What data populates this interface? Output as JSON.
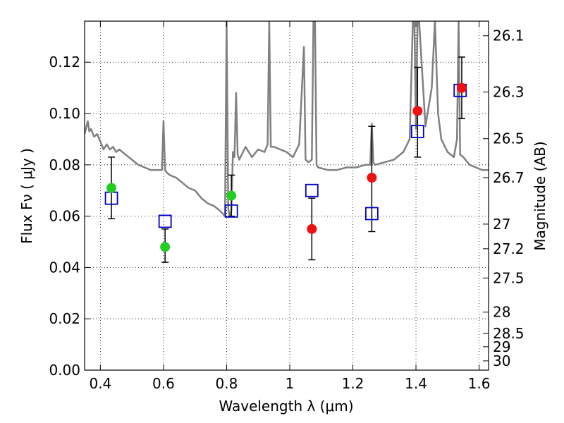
{
  "chart_data": {
    "type": "scatter",
    "title": "",
    "xlabel": "Wavelength  λ (μm)",
    "ylabel": "Flux  Fν  ( μJy )",
    "ylabel_right": "Magnitude (AB)",
    "xlim": [
      0.35,
      1.63
    ],
    "ylim": [
      0.0,
      0.136
    ],
    "grid": true,
    "x_ticks": [
      0.4,
      0.6,
      0.8,
      1.0,
      1.2,
      1.4,
      1.6
    ],
    "x_tick_labels": [
      "0.4",
      "0.6",
      "0.8",
      "1",
      "1.2",
      "1.4",
      "1.6"
    ],
    "y_ticks": [
      0.0,
      0.02,
      0.04,
      0.06,
      0.08,
      0.1,
      0.12
    ],
    "y_tick_labels": [
      "0.00",
      "0.02",
      "0.04",
      "0.06",
      "0.08",
      "0.10",
      "0.12"
    ],
    "right_ticks": [
      {
        "label": "26.1",
        "flux": 0.1303
      },
      {
        "label": "26.3",
        "flux": 0.1084
      },
      {
        "label": "26.5",
        "flux": 0.0902
      },
      {
        "label": "26.7",
        "flux": 0.075
      },
      {
        "label": "27",
        "flux": 0.0569
      },
      {
        "label": "27.2",
        "flux": 0.0473
      },
      {
        "label": "27.5",
        "flux": 0.0359
      },
      {
        "label": "28",
        "flux": 0.0226
      },
      {
        "label": "28.5",
        "flux": 0.0143
      },
      {
        "label": "29",
        "flux": 0.0091
      },
      {
        "label": "30",
        "flux": 0.0036
      }
    ],
    "series": [
      {
        "name": "",
        "kind": "line",
        "color": "#808080",
        "x": [
          0.35,
          0.36,
          0.365,
          0.37,
          0.38,
          0.39,
          0.4,
          0.41,
          0.42,
          0.43,
          0.44,
          0.45,
          0.46,
          0.48,
          0.5,
          0.52,
          0.54,
          0.56,
          0.58,
          0.595,
          0.6,
          0.605,
          0.61,
          0.62,
          0.64,
          0.66,
          0.68,
          0.7,
          0.72,
          0.74,
          0.76,
          0.78,
          0.795,
          0.8,
          0.805,
          0.81,
          0.815,
          0.82,
          0.825,
          0.83,
          0.835,
          0.84,
          0.86,
          0.88,
          0.9,
          0.92,
          0.93,
          0.935,
          0.94,
          0.95,
          0.97,
          0.99,
          1.01,
          1.03,
          1.045,
          1.05,
          1.06,
          1.07,
          1.075,
          1.08,
          1.085,
          1.09,
          1.12,
          1.15,
          1.18,
          1.21,
          1.24,
          1.255,
          1.26,
          1.265,
          1.27,
          1.3,
          1.33,
          1.36,
          1.38,
          1.39,
          1.395,
          1.4,
          1.405,
          1.41,
          1.43,
          1.45,
          1.46,
          1.47,
          1.48,
          1.5,
          1.52,
          1.53,
          1.535,
          1.54,
          1.55,
          1.57,
          1.59,
          1.61,
          1.63
        ],
        "y": [
          0.092,
          0.097,
          0.093,
          0.094,
          0.091,
          0.092,
          0.089,
          0.086,
          0.088,
          0.086,
          0.087,
          0.085,
          0.086,
          0.084,
          0.082,
          0.08,
          0.079,
          0.078,
          0.078,
          0.078,
          0.097,
          0.078,
          0.077,
          0.076,
          0.075,
          0.073,
          0.071,
          0.07,
          0.067,
          0.065,
          0.064,
          0.062,
          0.06,
          0.136,
          0.063,
          0.06,
          0.062,
          0.085,
          0.083,
          0.108,
          0.084,
          0.082,
          0.087,
          0.083,
          0.086,
          0.085,
          0.088,
          0.136,
          0.087,
          0.087,
          0.086,
          0.085,
          0.083,
          0.088,
          0.126,
          0.082,
          0.081,
          0.082,
          0.136,
          0.136,
          0.08,
          0.079,
          0.078,
          0.078,
          0.079,
          0.079,
          0.08,
          0.08,
          0.096,
          0.081,
          0.08,
          0.081,
          0.082,
          0.085,
          0.09,
          0.136,
          0.136,
          0.094,
          0.136,
          0.136,
          0.095,
          0.11,
          0.136,
          0.1,
          0.09,
          0.085,
          0.083,
          0.09,
          0.136,
          0.084,
          0.083,
          0.08,
          0.079,
          0.078,
          0.078
        ]
      },
      {
        "name": "",
        "kind": "open-square",
        "color": "#0000cc",
        "x": [
          0.435,
          0.605,
          0.815,
          1.07,
          1.26,
          1.405,
          1.54
        ],
        "y": [
          0.067,
          0.058,
          0.062,
          0.07,
          0.061,
          0.093,
          0.109
        ]
      },
      {
        "name": "",
        "kind": "filled-circle",
        "color": "#22cc22",
        "x": [
          0.435,
          0.605,
          0.815
        ],
        "y": [
          0.071,
          0.048,
          0.068
        ],
        "yerr_low": [
          0.059,
          0.042,
          0.06
        ],
        "yerr_high": [
          0.083,
          0.055,
          0.076
        ]
      },
      {
        "name": "",
        "kind": "filled-circle",
        "color": "#ee1111",
        "x": [
          1.07,
          1.26,
          1.405,
          1.545
        ],
        "y": [
          0.055,
          0.075,
          0.101,
          0.11
        ],
        "yerr_low": [
          0.043,
          0.054,
          0.083,
          0.098
        ],
        "yerr_high": [
          0.067,
          0.095,
          0.118,
          0.122
        ]
      }
    ]
  }
}
